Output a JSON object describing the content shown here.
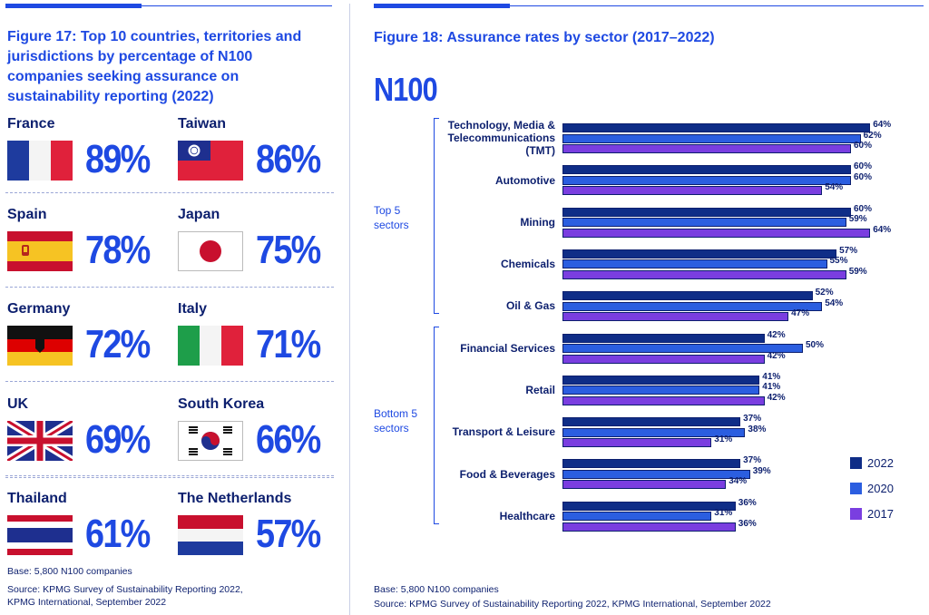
{
  "left": {
    "title": "Figure 17: Top 10 countries, territories and jurisdictions by percentage of N100 companies seeking assurance on sustainability reporting (2022)",
    "countries": [
      {
        "name": "France",
        "pct": "89%",
        "flag": "france-flag-icon"
      },
      {
        "name": "Taiwan",
        "pct": "86%",
        "flag": "taiwan-flag-icon"
      },
      {
        "name": "Spain",
        "pct": "78%",
        "flag": "spain-flag-icon"
      },
      {
        "name": "Japan",
        "pct": "75%",
        "flag": "japan-flag-icon"
      },
      {
        "name": "Germany",
        "pct": "72%",
        "flag": "germany-flag-icon"
      },
      {
        "name": "Italy",
        "pct": "71%",
        "flag": "italy-flag-icon"
      },
      {
        "name": "UK",
        "pct": "69%",
        "flag": "uk-flag-icon"
      },
      {
        "name": "South Korea",
        "pct": "66%",
        "flag": "south-korea-flag-icon"
      },
      {
        "name": "Thailand",
        "pct": "61%",
        "flag": "thailand-flag-icon"
      },
      {
        "name": "The Netherlands",
        "pct": "57%",
        "flag": "netherlands-flag-icon"
      }
    ],
    "base": "Base: 5,800 N100 companies",
    "source_line1": "Source: KPMG Survey of Sustainability Reporting 2022,",
    "source_line2": "KPMG International, September 2022"
  },
  "right": {
    "title": "Figure 18: Assurance rates by sector (2017–2022)",
    "subtitle": "N100",
    "group_top": "Top 5 sectors",
    "group_bottom": "Bottom 5 sectors",
    "base": "Base: 5,800 N100 companies",
    "source": "Source: KPMG Survey of Sustainability Reporting 2022, KPMG International, September 2022"
  },
  "colors": {
    "accent": "#1e49e2",
    "dark": "#0c1f6e",
    "y2022": "#0f2d87",
    "y2020": "#2b5ee0",
    "y2017": "#7a3ee0"
  },
  "chart_data": [
    {
      "type": "table",
      "title": "Figure 17: Top 10 countries, territories and jurisdictions by percentage of N100 companies seeking assurance on sustainability reporting (2022)",
      "categories": [
        "France",
        "Taiwan",
        "Spain",
        "Japan",
        "Germany",
        "Italy",
        "UK",
        "South Korea",
        "Thailand",
        "The Netherlands"
      ],
      "values": [
        89,
        86,
        78,
        75,
        72,
        71,
        69,
        66,
        61,
        57
      ]
    },
    {
      "type": "bar",
      "orientation": "horizontal",
      "title": "Figure 18: Assurance rates by sector (2017–2022)",
      "categories": [
        "Technology, Media & Telecommunications (TMT)",
        "Automotive",
        "Mining",
        "Chemicals",
        "Oil & Gas",
        "Financial Services",
        "Retail",
        "Transport & Leisure",
        "Food & Beverages",
        "Healthcare"
      ],
      "category_lines": [
        [
          "Technology, Media &",
          "Telecommunications",
          "(TMT)"
        ],
        [
          "Automotive"
        ],
        [
          "Mining"
        ],
        [
          "Chemicals"
        ],
        [
          "Oil & Gas"
        ],
        [
          "Financial Services"
        ],
        [
          "Retail"
        ],
        [
          "Transport & Leisure"
        ],
        [
          "Food & Beverages"
        ],
        [
          "Healthcare"
        ]
      ],
      "series": [
        {
          "name": "2022",
          "values": [
            64,
            60,
            60,
            57,
            52,
            42,
            41,
            37,
            37,
            36
          ]
        },
        {
          "name": "2020",
          "values": [
            62,
            60,
            59,
            55,
            54,
            50,
            41,
            38,
            39,
            31
          ]
        },
        {
          "name": "2017",
          "values": [
            60,
            54,
            64,
            59,
            47,
            42,
            42,
            31,
            34,
            36
          ]
        }
      ],
      "value_suffix": "%",
      "xlim": [
        0,
        70
      ],
      "legend_position": "bottom-right",
      "grid": false
    }
  ]
}
